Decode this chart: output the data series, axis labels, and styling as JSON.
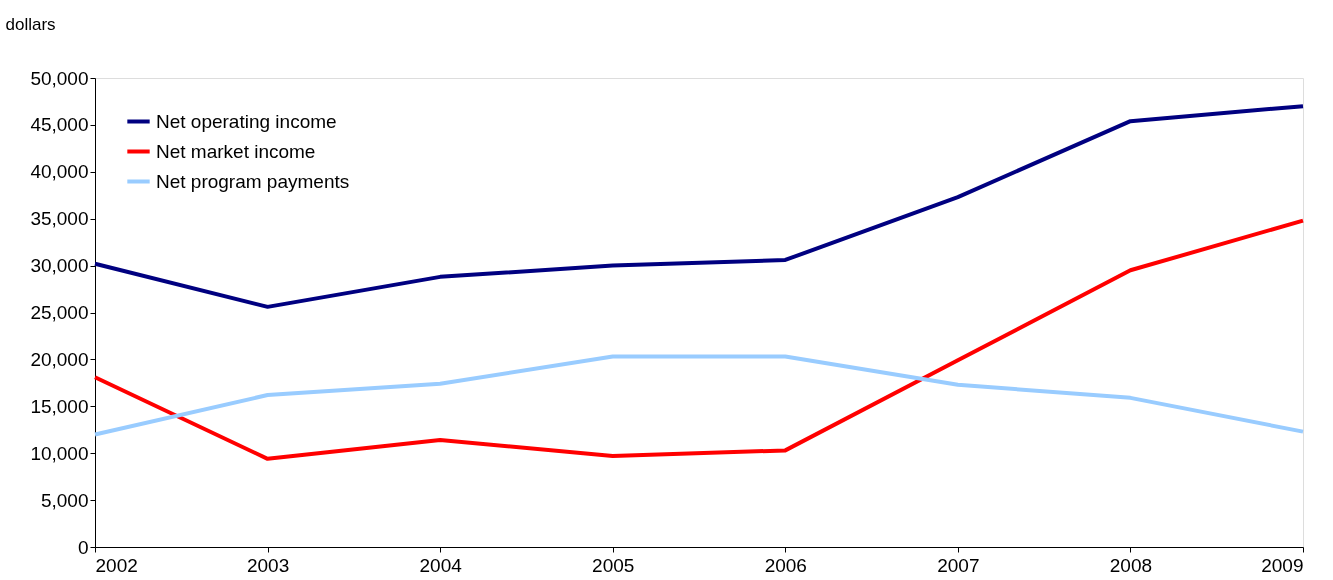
{
  "chart_data": {
    "type": "line",
    "ylabel": "dollars",
    "x": [
      2002,
      2003,
      2004,
      2005,
      2006,
      2007,
      2008,
      2009
    ],
    "xlim": [
      2002,
      2009
    ],
    "xticks": [
      2002,
      2003,
      2004,
      2005,
      2006,
      2007,
      2008,
      2009
    ],
    "ylim": [
      0,
      50000
    ],
    "yticks": [
      0,
      {
        "value": 5000,
        "label": "5,000"
      },
      {
        "value": 10000,
        "label": "10,000"
      },
      {
        "value": 15000,
        "label": "15,000"
      },
      {
        "value": 20000,
        "label": "20,000"
      },
      {
        "value": 25000,
        "label": "25,000"
      },
      {
        "value": 30000,
        "label": "30,000"
      },
      {
        "value": 35000,
        "label": "35,000"
      },
      {
        "value": 40000,
        "label": "40,000"
      },
      {
        "value": 45000,
        "label": "45,000"
      },
      {
        "value": 50000,
        "label": "50,000"
      }
    ],
    "grid": false,
    "legend": "top left",
    "marker": "none",
    "line_style": "solid",
    "series": [
      {
        "name": "Net operating income",
        "color": "#000080",
        "values": [
          30200,
          25600,
          28800,
          30000,
          30600,
          37300,
          45400,
          47000
        ]
      },
      {
        "name": "Net market income",
        "color": "#ff0000",
        "values": [
          18100,
          9400,
          11400,
          9700,
          10300,
          19900,
          29500,
          34800
        ]
      },
      {
        "name": "Net program payments",
        "color": "#99ccff",
        "values": [
          12000,
          16200,
          17400,
          20300,
          20300,
          17300,
          15900,
          12300
        ]
      }
    ]
  }
}
